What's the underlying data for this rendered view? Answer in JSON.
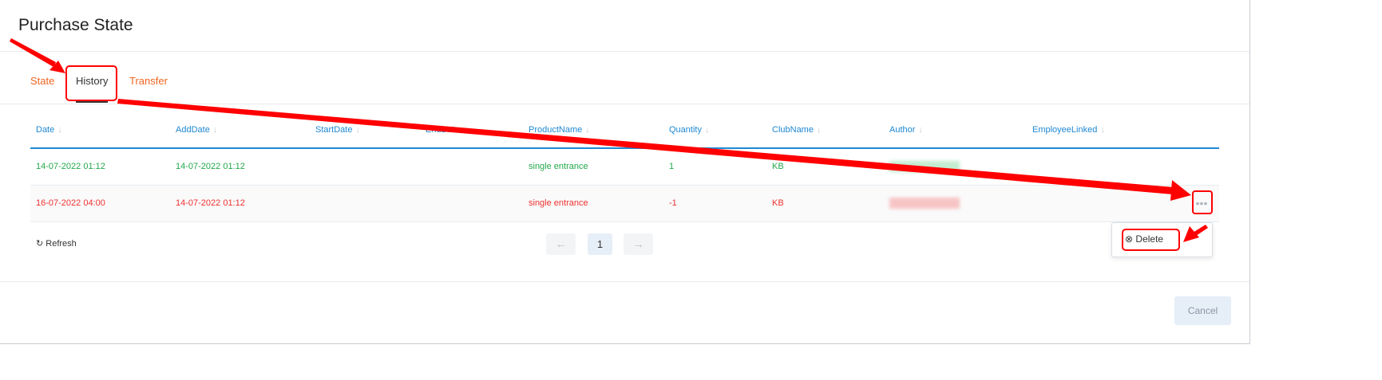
{
  "title": "Purchase State",
  "tabs": [
    {
      "label": "State"
    },
    {
      "label": "History"
    },
    {
      "label": "Transfer"
    }
  ],
  "columns": [
    "Date",
    "AddDate",
    "StartDate",
    "EndDate",
    "ProductName",
    "Quantity",
    "ClubName",
    "Author",
    "EmployeeLinked"
  ],
  "sort_icon": "↓",
  "rows": [
    {
      "status": "green",
      "Date": "14-07-2022 01:12",
      "AddDate": "14-07-2022 01:12",
      "ProductName": "single entrance",
      "Quantity": "1",
      "ClubName": "KB"
    },
    {
      "status": "red",
      "Date": "16-07-2022 04:00",
      "AddDate": "14-07-2022 01:12",
      "ProductName": "single entrance",
      "Quantity": "-1",
      "ClubName": "KB"
    }
  ],
  "row_menu_icon": "•••",
  "refresh_label": "Refresh",
  "pagination": {
    "prev": "←",
    "current": "1",
    "next": "→"
  },
  "context_menu": {
    "delete_label": "Delete",
    "delete_icon": "⊗"
  },
  "cancel_label": "Cancel",
  "colors": {
    "accent": "#1e88d2",
    "tab": "#f0641e",
    "positive": "#22a84a",
    "negative": "#f03030",
    "annotation": "#ff0000"
  }
}
